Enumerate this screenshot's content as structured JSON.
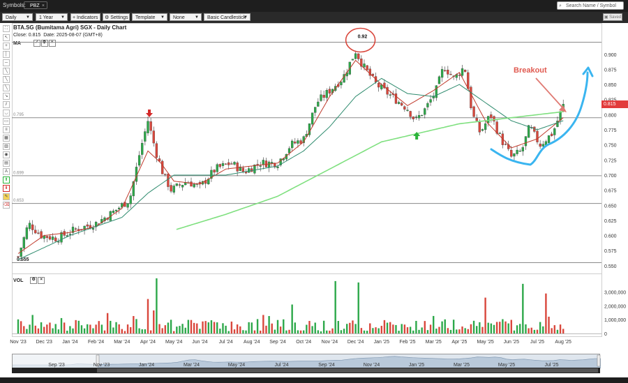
{
  "topbar": {
    "symbols_label": "Symbols:",
    "symbol_tab": "PBZ",
    "search_placeholder": "Search Name / Symbol"
  },
  "toolbar": {
    "interval": "Daily",
    "range": "1 Year",
    "indicators": "Indicators",
    "settings": "Settings",
    "template": "Template",
    "none": "None",
    "chart_type": "Basic Candlestick",
    "saved": "Saved"
  },
  "chart_header": {
    "title": "BTA.SG (Bumitama Agri) SGX - Daily Chart",
    "close_label": "Close:",
    "close_value": "0.815",
    "date_label": "Date:",
    "date_value": "2025-08-07",
    "timezone": "(GMT+8)",
    "ma_label": "MA",
    "vol_label": "VOL",
    "current_price": "0.815"
  },
  "chart_data": {
    "type": "candlestick",
    "price_axis": {
      "min": 0.55,
      "max": 0.9,
      "ticks": [
        "0.900",
        "0.875",
        "0.850",
        "0.825",
        "0.800",
        "0.775",
        "0.750",
        "0.725",
        "0.700",
        "0.675",
        "0.650",
        "0.625",
        "0.600",
        "0.575",
        "0.550"
      ]
    },
    "volume_axis": {
      "ticks": [
        "3,000,000",
        "2,000,000",
        "1,000,000",
        "0"
      ]
    },
    "x_ticks": [
      "Nov '23",
      "Dec '23",
      "Jan '24",
      "Feb '24",
      "Mar '24",
      "Apr '24",
      "May '24",
      "Jun '24",
      "Jul '24",
      "Aug '24",
      "Sep '24",
      "Oct '24",
      "Nov '24",
      "Dec '24",
      "Jan '25",
      "Feb '25",
      "Mar '25",
      "Apr '25",
      "May '25",
      "Jun '25",
      "Jul '25",
      "Aug '25"
    ],
    "navigator_ticks": [
      "Sep '23",
      "Nov '23",
      "Jan '24",
      "Mar '24",
      "May '24",
      "Jul '24",
      "Sep '24",
      "Nov '24",
      "Jan '25",
      "Mar '25",
      "May '25",
      "Jul '25"
    ],
    "horizontal_levels": [
      {
        "label": "0.92",
        "value": 0.92
      },
      {
        "label": "0.795",
        "value": 0.795
      },
      {
        "label": "0.699",
        "value": 0.699
      },
      {
        "label": "0.653",
        "value": 0.653
      },
      {
        "label": "0.555",
        "value": 0.555
      }
    ],
    "annotations": {
      "peak_label": "0.92",
      "breakout_label": "Breakout"
    },
    "close_path": [
      {
        "m": 0,
        "v": 0.565
      },
      {
        "m": 0.4,
        "v": 0.62
      },
      {
        "m": 0.9,
        "v": 0.6
      },
      {
        "m": 1.5,
        "v": 0.595
      },
      {
        "m": 2.2,
        "v": 0.61
      },
      {
        "m": 3.0,
        "v": 0.62
      },
      {
        "m": 3.7,
        "v": 0.64
      },
      {
        "m": 4.3,
        "v": 0.66
      },
      {
        "m": 4.7,
        "v": 0.74
      },
      {
        "m": 5.0,
        "v": 0.79
      },
      {
        "m": 5.3,
        "v": 0.74
      },
      {
        "m": 5.6,
        "v": 0.7
      },
      {
        "m": 5.9,
        "v": 0.675
      },
      {
        "m": 6.5,
        "v": 0.69
      },
      {
        "m": 7.0,
        "v": 0.68
      },
      {
        "m": 7.6,
        "v": 0.71
      },
      {
        "m": 8.2,
        "v": 0.72
      },
      {
        "m": 8.7,
        "v": 0.705
      },
      {
        "m": 9.3,
        "v": 0.72
      },
      {
        "m": 10.0,
        "v": 0.72
      },
      {
        "m": 10.5,
        "v": 0.75
      },
      {
        "m": 11.0,
        "v": 0.76
      },
      {
        "m": 11.5,
        "v": 0.82
      },
      {
        "m": 12.0,
        "v": 0.84
      },
      {
        "m": 12.5,
        "v": 0.86
      },
      {
        "m": 13.0,
        "v": 0.905
      },
      {
        "m": 13.3,
        "v": 0.88
      },
      {
        "m": 13.8,
        "v": 0.85
      },
      {
        "m": 14.4,
        "v": 0.83
      },
      {
        "m": 15.0,
        "v": 0.81
      },
      {
        "m": 15.3,
        "v": 0.79
      },
      {
        "m": 15.7,
        "v": 0.81
      },
      {
        "m": 16.1,
        "v": 0.84
      },
      {
        "m": 16.4,
        "v": 0.88
      },
      {
        "m": 16.8,
        "v": 0.86
      },
      {
        "m": 17.2,
        "v": 0.88
      },
      {
        "m": 17.5,
        "v": 0.8
      },
      {
        "m": 17.8,
        "v": 0.77
      },
      {
        "m": 18.2,
        "v": 0.8
      },
      {
        "m": 18.6,
        "v": 0.76
      },
      {
        "m": 19.0,
        "v": 0.73
      },
      {
        "m": 19.4,
        "v": 0.74
      },
      {
        "m": 19.7,
        "v": 0.78
      },
      {
        "m": 20.1,
        "v": 0.75
      },
      {
        "m": 20.6,
        "v": 0.77
      },
      {
        "m": 21.0,
        "v": 0.815
      }
    ],
    "moving_averages": [
      {
        "name": "MA short",
        "color": "#c0392b",
        "path": [
          {
            "m": 0,
            "v": 0.57
          },
          {
            "m": 1,
            "v": 0.6
          },
          {
            "m": 2,
            "v": 0.605
          },
          {
            "m": 3,
            "v": 0.615
          },
          {
            "m": 4,
            "v": 0.645
          },
          {
            "m": 5,
            "v": 0.74
          },
          {
            "m": 5.5,
            "v": 0.72
          },
          {
            "m": 6,
            "v": 0.69
          },
          {
            "m": 7,
            "v": 0.685
          },
          {
            "m": 8,
            "v": 0.71
          },
          {
            "m": 9,
            "v": 0.715
          },
          {
            "m": 10,
            "v": 0.72
          },
          {
            "m": 11,
            "v": 0.755
          },
          {
            "m": 12,
            "v": 0.83
          },
          {
            "m": 13,
            "v": 0.89
          },
          {
            "m": 14,
            "v": 0.85
          },
          {
            "m": 15,
            "v": 0.815
          },
          {
            "m": 16,
            "v": 0.84
          },
          {
            "m": 17,
            "v": 0.87
          },
          {
            "m": 17.5,
            "v": 0.83
          },
          {
            "m": 18,
            "v": 0.79
          },
          {
            "m": 19,
            "v": 0.745
          },
          {
            "m": 20,
            "v": 0.76
          },
          {
            "m": 21,
            "v": 0.795
          }
        ]
      },
      {
        "name": "MA medium",
        "color": "#2e8b6e",
        "path": [
          {
            "m": 0,
            "v": 0.56
          },
          {
            "m": 2,
            "v": 0.6
          },
          {
            "m": 4,
            "v": 0.63
          },
          {
            "m": 5,
            "v": 0.67
          },
          {
            "m": 6,
            "v": 0.7
          },
          {
            "m": 8,
            "v": 0.7
          },
          {
            "m": 10,
            "v": 0.715
          },
          {
            "m": 11,
            "v": 0.74
          },
          {
            "m": 12,
            "v": 0.78
          },
          {
            "m": 13,
            "v": 0.83
          },
          {
            "m": 14,
            "v": 0.86
          },
          {
            "m": 15,
            "v": 0.835
          },
          {
            "m": 16,
            "v": 0.83
          },
          {
            "m": 17,
            "v": 0.85
          },
          {
            "m": 18,
            "v": 0.82
          },
          {
            "m": 19,
            "v": 0.79
          },
          {
            "m": 20,
            "v": 0.775
          },
          {
            "m": 21,
            "v": 0.79
          }
        ]
      },
      {
        "name": "MA long",
        "color": "#7fe07f",
        "path": [
          {
            "m": 6.1,
            "v": 0.61
          },
          {
            "m": 8,
            "v": 0.635
          },
          {
            "m": 10,
            "v": 0.665
          },
          {
            "m": 12,
            "v": 0.71
          },
          {
            "m": 14,
            "v": 0.755
          },
          {
            "m": 15.5,
            "v": 0.77
          },
          {
            "m": 17,
            "v": 0.785
          },
          {
            "m": 19,
            "v": 0.795
          },
          {
            "m": 21,
            "v": 0.805
          }
        ]
      }
    ],
    "volume_spikes": [
      {
        "m": 5.3,
        "v": 4000000
      },
      {
        "m": 5.0,
        "v": 2500000
      },
      {
        "m": 12.2,
        "v": 3800000
      },
      {
        "m": 13.1,
        "v": 3700000
      },
      {
        "m": 18.0,
        "v": 2600000
      },
      {
        "m": 19.4,
        "v": 3600000
      },
      {
        "m": 20.3,
        "v": 2900000
      },
      {
        "m": 10.6,
        "v": 2100000
      }
    ]
  },
  "colors": {
    "up": "#2da84a",
    "down": "#d9473c",
    "peak_circle": "#d9473c",
    "breakout_arrow": "#e07a73",
    "breakout_text": "#e05a50",
    "curve": "#3ab5f0",
    "accent_up_arrow": "#2bb33a",
    "accent_down_arrow": "#d42a2a"
  }
}
